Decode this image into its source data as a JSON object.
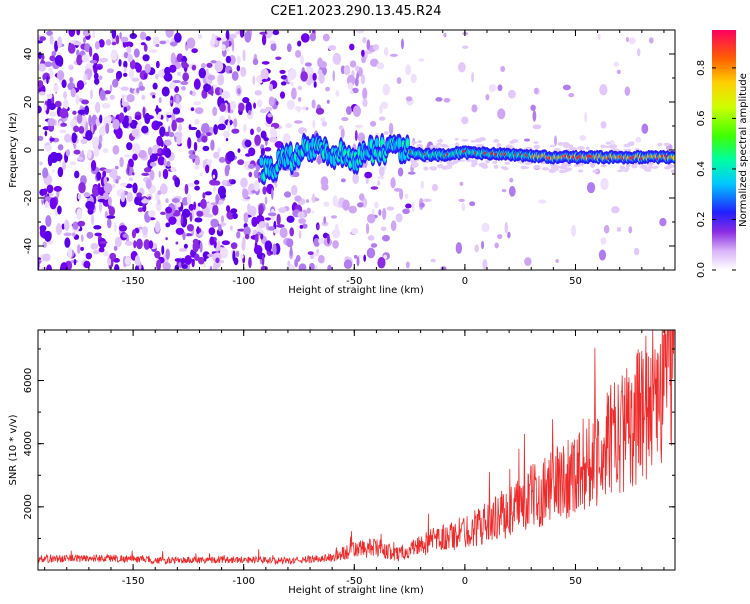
{
  "title": "C2E1.2023.290.13.45.R24",
  "chart_data": [
    {
      "type": "heatmap",
      "xlabel": "Height of straight line (km)",
      "ylabel": "Frequency (Hz)",
      "xlim": [
        -193,
        95
      ],
      "ylim": [
        -50,
        50
      ],
      "xticks": [
        -150,
        -100,
        -50,
        0,
        50
      ],
      "yticks": [
        -40,
        -20,
        0,
        20,
        40
      ],
      "colorbar": {
        "label": "Normalized spectral amplitude",
        "range": [
          0,
          0.95
        ],
        "ticks": [
          0.0,
          0.2,
          0.4,
          0.6,
          0.8
        ]
      },
      "ridge": {
        "description_points_x": [
          -90,
          -80,
          -70,
          -60,
          -50,
          -40,
          -30,
          -20,
          -10,
          0,
          20,
          40,
          60,
          80,
          95
        ],
        "description_points_y": [
          -8,
          -4,
          1,
          -1,
          -3,
          0,
          1,
          -2,
          -2,
          -1,
          -2,
          -3,
          -3,
          -3,
          -3
        ]
      },
      "grid": false
    },
    {
      "type": "line",
      "xlabel": "Height of straight line (km)",
      "ylabel": "SNR (10 * v/v)",
      "xlim": [
        -193,
        95
      ],
      "ylim": [
        0,
        7600
      ],
      "xticks": [
        -150,
        -100,
        -50,
        0,
        50
      ],
      "yticks": [
        2000,
        4000,
        6000
      ],
      "color": "#ee2a2a",
      "envelope_x": [
        -193,
        -160,
        -140,
        -120,
        -100,
        -80,
        -60,
        -50,
        -40,
        -30,
        -20,
        -10,
        0,
        10,
        20,
        30,
        40,
        50,
        60,
        70,
        80,
        90,
        95
      ],
      "envelope_y": [
        350,
        380,
        300,
        320,
        330,
        280,
        400,
        650,
        700,
        500,
        800,
        1000,
        1200,
        1500,
        1850,
        2300,
        2700,
        3100,
        3700,
        4300,
        5000,
        6000,
        6800
      ],
      "grid": false
    }
  ]
}
